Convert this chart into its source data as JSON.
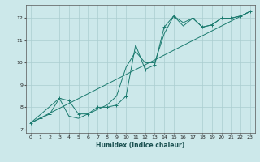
{
  "xlabel": "Humidex (Indice chaleur)",
  "ylabel": "",
  "bg_color": "#cce8ea",
  "grid_color": "#aacdd0",
  "line_color": "#1a7a6e",
  "xlim": [
    -0.5,
    23.5
  ],
  "ylim": [
    6.85,
    12.6
  ],
  "xticks": [
    0,
    1,
    2,
    3,
    4,
    5,
    6,
    7,
    8,
    9,
    10,
    11,
    12,
    13,
    14,
    15,
    16,
    17,
    18,
    19,
    20,
    21,
    22,
    23
  ],
  "yticks": [
    7,
    8,
    9,
    10,
    11,
    12
  ],
  "curve1_x": [
    0,
    1,
    2,
    3,
    4,
    5,
    6,
    7,
    8,
    9,
    10,
    11,
    12,
    13,
    14,
    15,
    16,
    17,
    18,
    19,
    20,
    21,
    22,
    23
  ],
  "curve1_y": [
    7.3,
    7.5,
    7.7,
    8.4,
    8.3,
    7.7,
    7.7,
    8.0,
    8.0,
    8.1,
    8.5,
    10.8,
    9.7,
    9.9,
    11.6,
    12.1,
    11.8,
    12.0,
    11.6,
    11.7,
    12.0,
    12.0,
    12.1,
    12.3
  ],
  "curve2_x": [
    0,
    3,
    4,
    5,
    6,
    7,
    8,
    9,
    10,
    11,
    12,
    13,
    14,
    15,
    16,
    17,
    18,
    19,
    20,
    21,
    22,
    23
  ],
  "curve2_y": [
    7.3,
    8.4,
    7.6,
    7.5,
    7.7,
    7.9,
    8.1,
    8.5,
    9.8,
    10.5,
    10.0,
    10.0,
    11.3,
    12.1,
    11.65,
    12.0,
    11.6,
    11.7,
    12.0,
    12.0,
    12.1,
    12.3
  ],
  "trend_x": [
    0,
    23
  ],
  "trend_y": [
    7.3,
    12.3
  ]
}
